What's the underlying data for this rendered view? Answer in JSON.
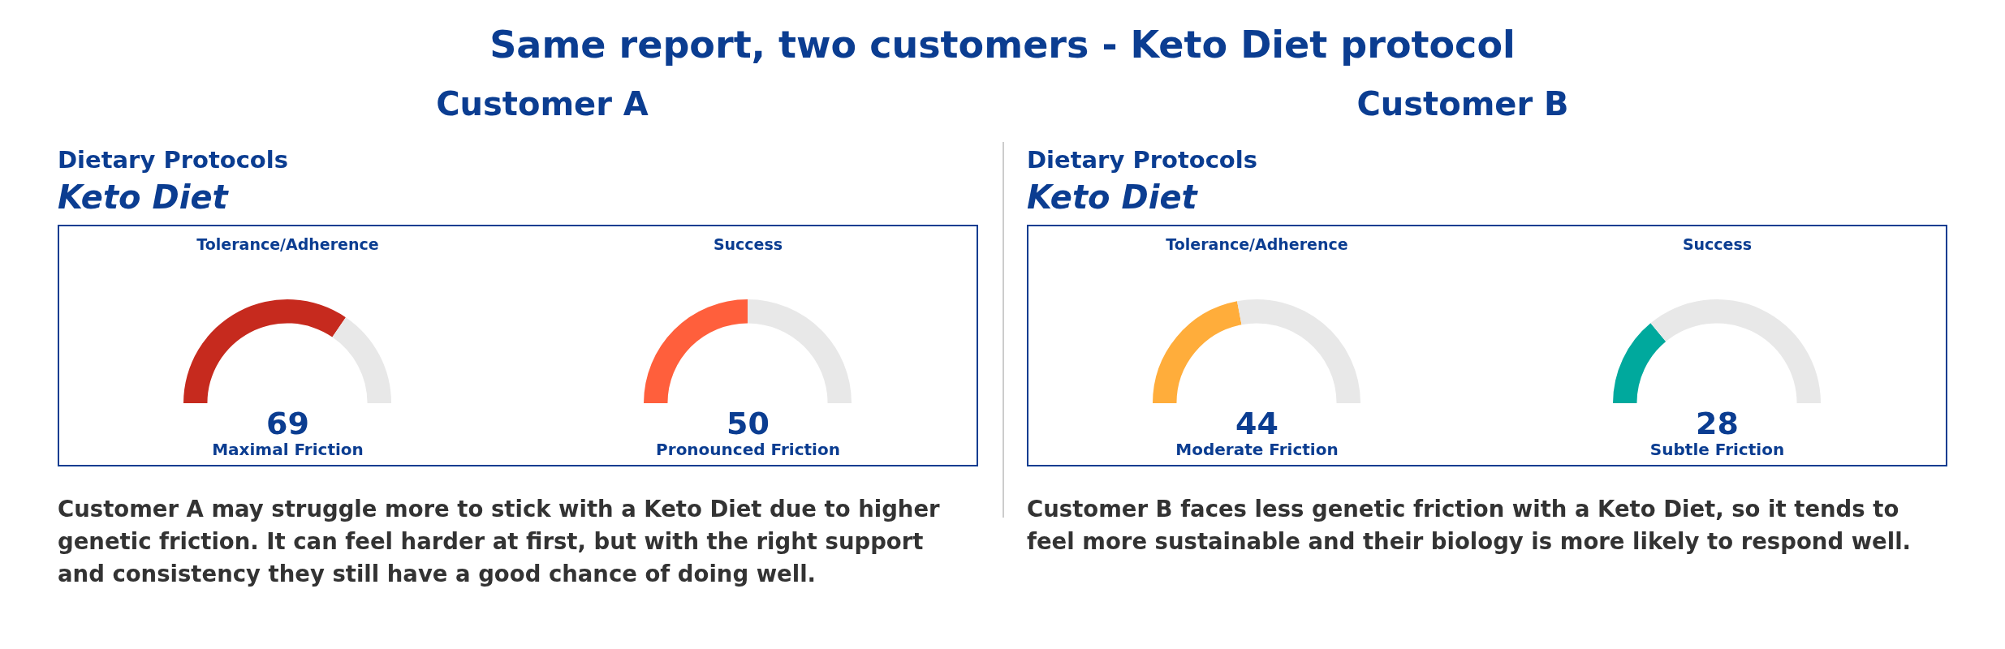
{
  "chart_data": [
    {
      "type": "other",
      "title": "Same report, two customers - Keto Diet protocol"
    },
    {
      "type": "other",
      "title": "Customer A",
      "subtitle": "Dietary Protocols",
      "annotations": [
        "Keto Diet",
        "Customer A may struggle more to stick with a Keto Diet due to higher genetic friction. It can feel harder at first, but with the right support and consistency they still have a good chance of doing well."
      ]
    },
    {
      "type": "donut",
      "title": "Tolerance/Adherence",
      "categories": [
        null,
        null
      ],
      "annotations": [
        "69",
        "Maximal Friction"
      ],
      "values": [
        69,
        31
      ],
      "colors": [
        "#c62a1e",
        "#e8e8e8"
      ]
    },
    {
      "type": "donut",
      "title": "Success",
      "categories": [
        null,
        null
      ],
      "annotations": [
        "50",
        "Pronounced Friction"
      ],
      "values": [
        50,
        50
      ],
      "colors": [
        "#ff5f3c",
        "#e8e8e8"
      ]
    },
    {
      "type": "other",
      "title": "Customer B",
      "subtitle": "Dietary Protocols",
      "annotations": [
        "Keto Diet",
        "Customer B faces less genetic friction with a Keto Diet, so it tends to feel more sustainable and their biology is more likely to respond well."
      ]
    },
    {
      "type": "donut",
      "title": "Tolerance/Adherence",
      "categories": [
        null,
        null
      ],
      "annotations": [
        "44",
        "Moderate Friction"
      ],
      "values": [
        44,
        56
      ],
      "colors": [
        "#ffad3b",
        "#e8e8e8"
      ]
    },
    {
      "type": "donut",
      "title": "Success",
      "categories": [
        null,
        null
      ],
      "annotations": [
        "28",
        "Subtle Friction"
      ],
      "values": [
        28,
        72
      ],
      "colors": [
        "#00a99d",
        "#e8e8e8"
      ]
    }
  ]
}
